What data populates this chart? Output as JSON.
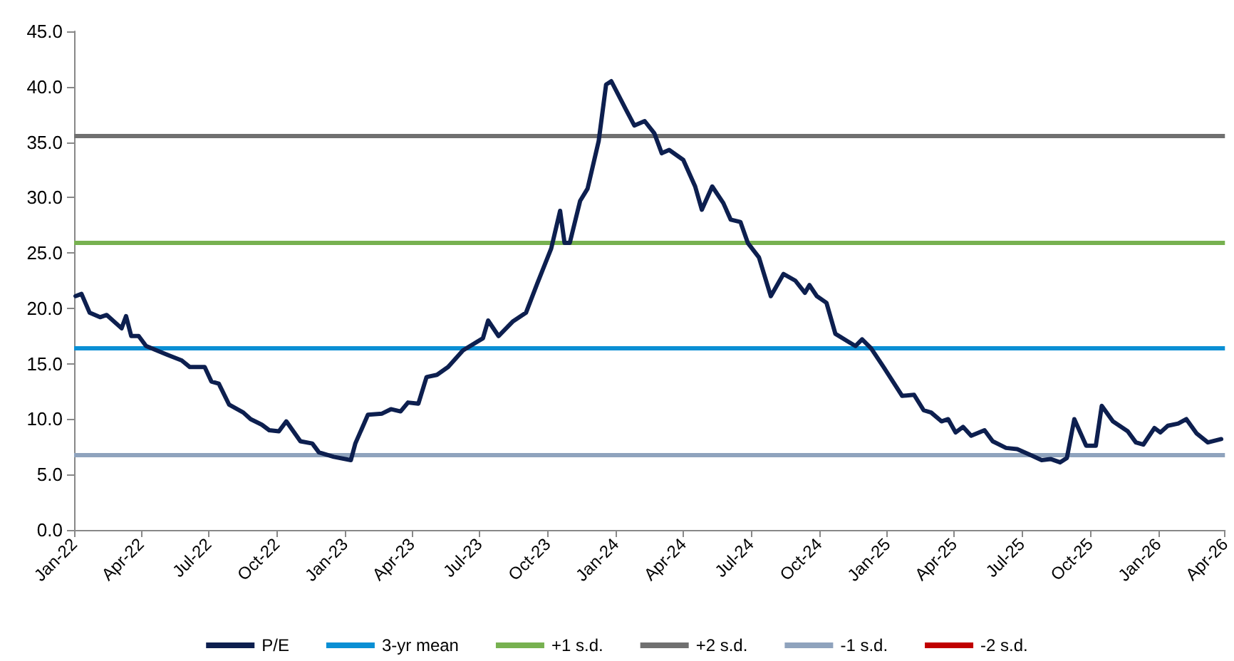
{
  "chart_data": {
    "type": "line",
    "x": [
      "2022-01-03",
      "2022-01-11",
      "2022-01-22",
      "2022-02-05",
      "2022-02-14",
      "2022-03-06",
      "2022-03-12",
      "2022-03-19",
      "2022-03-29",
      "2022-04-08",
      "2022-05-07",
      "2022-05-26",
      "2022-06-06",
      "2022-06-26",
      "2022-07-05",
      "2022-07-15",
      "2022-07-29",
      "2022-08-17",
      "2022-08-27",
      "2022-09-11",
      "2022-09-21",
      "2022-10-04",
      "2022-10-14",
      "2022-11-02",
      "2022-11-18",
      "2022-11-27",
      "2022-12-17",
      "2023-01-09",
      "2023-01-15",
      "2023-02-01",
      "2023-02-20",
      "2023-03-04",
      "2023-03-17",
      "2023-03-27",
      "2023-04-10",
      "2023-04-21",
      "2023-05-05",
      "2023-05-20",
      "2023-06-09",
      "2023-07-06",
      "2023-07-13",
      "2023-07-27",
      "2023-08-15",
      "2023-09-02",
      "2023-09-17",
      "2023-10-06",
      "2023-10-18",
      "2023-10-24",
      "2023-10-31",
      "2023-11-14",
      "2023-11-24",
      "2023-12-09",
      "2023-12-19",
      "2023-12-26",
      "2024-01-15",
      "2024-01-26",
      "2024-02-09",
      "2024-02-22",
      "2024-03-03",
      "2024-03-13",
      "2024-04-01",
      "2024-04-17",
      "2024-04-26",
      "2024-05-10",
      "2024-05-25",
      "2024-06-04",
      "2024-06-17",
      "2024-06-27",
      "2024-07-12",
      "2024-07-28",
      "2024-08-14",
      "2024-08-30",
      "2024-09-12",
      "2024-09-18",
      "2024-09-28",
      "2024-10-11",
      "2024-10-23",
      "2024-11-09",
      "2024-11-19",
      "2024-11-28",
      "2024-12-10",
      "2024-12-27",
      "2025-01-21",
      "2025-02-06",
      "2025-02-19",
      "2025-03-01",
      "2025-03-15",
      "2025-03-24",
      "2025-04-03",
      "2025-04-13",
      "2025-04-24",
      "2025-05-12",
      "2025-05-23",
      "2025-06-10",
      "2025-06-25",
      "2025-07-15",
      "2025-07-28",
      "2025-08-09",
      "2025-08-22",
      "2025-08-31",
      "2025-09-10",
      "2025-09-26",
      "2025-10-09",
      "2025-10-17",
      "2025-11-01",
      "2025-11-21",
      "2025-12-02",
      "2025-12-12",
      "2025-12-27",
      "2026-01-04",
      "2026-01-14",
      "2026-01-28",
      "2026-02-08",
      "2026-02-22",
      "2026-03-09",
      "2026-03-27"
    ],
    "series": [
      {
        "name": "P/E",
        "color": "#0d1f4f",
        "values": [
          21.1,
          21.3,
          19.6,
          19.2,
          19.4,
          18.2,
          19.3,
          17.5,
          17.5,
          16.6,
          15.8,
          15.3,
          14.7,
          14.7,
          13.4,
          13.2,
          11.3,
          10.6,
          10.0,
          9.5,
          9.0,
          8.9,
          9.8,
          8.0,
          7.8,
          7.0,
          6.6,
          6.3,
          7.8,
          10.4,
          10.5,
          10.9,
          10.7,
          11.5,
          11.4,
          13.8,
          14.0,
          14.7,
          16.2,
          17.3,
          18.9,
          17.5,
          18.8,
          19.6,
          22.2,
          25.4,
          28.8,
          25.9,
          25.9,
          29.7,
          30.8,
          35.1,
          40.2,
          40.5,
          37.9,
          36.5,
          36.9,
          35.8,
          34.0,
          34.3,
          33.4,
          31.0,
          28.9,
          31.0,
          29.5,
          28.0,
          27.8,
          25.9,
          24.6,
          21.1,
          23.1,
          22.5,
          21.4,
          22.1,
          21.1,
          20.5,
          17.7,
          17.0,
          16.6,
          17.2,
          16.4,
          14.7,
          12.1,
          12.2,
          10.8,
          10.6,
          9.8,
          10.0,
          8.8,
          9.3,
          8.5,
          9.0,
          8.0,
          7.4,
          7.3,
          6.7,
          6.3,
          6.4,
          6.1,
          6.5,
          10.0,
          7.6,
          7.6,
          11.2,
          9.8,
          8.9,
          7.9,
          7.7,
          9.2,
          8.8,
          9.4,
          9.6,
          10.0,
          8.7,
          7.9,
          8.2
        ]
      }
    ],
    "ref_lines": [
      {
        "axis": "y",
        "value": 16.4,
        "label": "3-yr mean",
        "color": "#0a8fd4"
      },
      {
        "axis": "y",
        "value": 26.0,
        "label": "+1 s.d.",
        "color": "#77b150"
      },
      {
        "axis": "y",
        "value": 35.6,
        "label": "+2 s.d.",
        "color": "#707070"
      },
      {
        "axis": "y",
        "value": 6.8,
        "label": "-1 s.d.",
        "color": "#8fa3bd"
      },
      {
        "axis": "y",
        "value": null,
        "label": "-2 s.d.",
        "color": "#c00000"
      }
    ],
    "xlim": [
      "2022-01-01",
      "2026-04-01"
    ],
    "xticks": [
      {
        "value": "2022-01-01",
        "label": "Jan-22"
      },
      {
        "value": "2022-04-01",
        "label": "Apr-22"
      },
      {
        "value": "2022-07-01",
        "label": "Jul-22"
      },
      {
        "value": "2022-10-01",
        "label": "Oct-22"
      },
      {
        "value": "2023-01-01",
        "label": "Jan-23"
      },
      {
        "value": "2023-04-01",
        "label": "Apr-23"
      },
      {
        "value": "2023-07-01",
        "label": "Jul-23"
      },
      {
        "value": "2023-10-01",
        "label": "Oct-23"
      },
      {
        "value": "2024-01-01",
        "label": "Jan-24"
      },
      {
        "value": "2024-04-01",
        "label": "Apr-24"
      },
      {
        "value": "2024-07-01",
        "label": "Jul-24"
      },
      {
        "value": "2024-10-01",
        "label": "Oct-24"
      },
      {
        "value": "2025-01-01",
        "label": "Jan-25"
      },
      {
        "value": "2025-04-01",
        "label": "Apr-25"
      },
      {
        "value": "2025-07-01",
        "label": "Jul-25"
      },
      {
        "value": "2025-10-01",
        "label": "Oct-25"
      },
      {
        "value": "2026-01-01",
        "label": "Jan-26"
      },
      {
        "value": "2026-04-01",
        "label": "Apr-26"
      }
    ],
    "ylim": [
      0,
      45
    ],
    "yticks": [
      {
        "value": 0,
        "label": "0.0"
      },
      {
        "value": 5,
        "label": "5.0"
      },
      {
        "value": 10,
        "label": "10.0"
      },
      {
        "value": 15,
        "label": "15.0"
      },
      {
        "value": 20,
        "label": "20.0"
      },
      {
        "value": 25,
        "label": "25.0"
      },
      {
        "value": 30,
        "label": "30.0"
      },
      {
        "value": 35,
        "label": "35.0"
      },
      {
        "value": 40,
        "label": "40.0"
      },
      {
        "value": 45,
        "label": "45.0"
      }
    ],
    "grid": false,
    "legend": "bottom",
    "marker": "none",
    "line_style": "solid"
  }
}
